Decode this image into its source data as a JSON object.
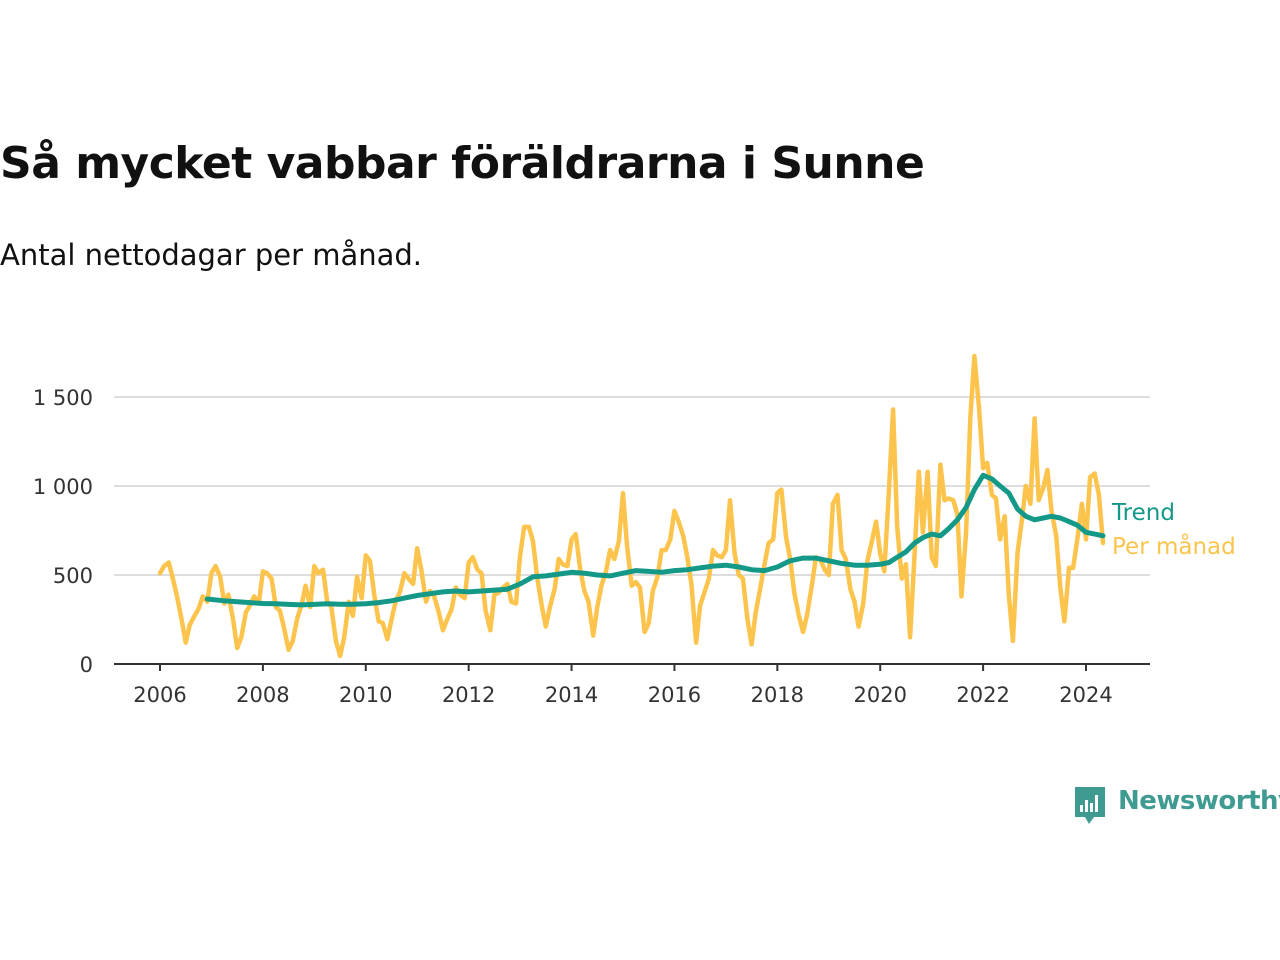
{
  "chart_data": {
    "type": "line",
    "title": "Så mycket vabbar föräldrarna i Sunne",
    "subtitle": "Antal nettodagar per månad.",
    "xlabel": "",
    "ylabel": "",
    "xlim": [
      2005.8,
      2025.2
    ],
    "ylim": [
      0,
      1780
    ],
    "x_ticks": [
      "2006",
      "2008",
      "2010",
      "2012",
      "2014",
      "2016",
      "2018",
      "2020",
      "2022",
      "2024"
    ],
    "y_ticks": [
      {
        "value": 0,
        "label": "0"
      },
      {
        "value": 500,
        "label": "500"
      },
      {
        "value": 1000,
        "label": "1 000"
      },
      {
        "value": 1500,
        "label": "1 500"
      }
    ],
    "grid": true,
    "legend": "right-end labels",
    "series": [
      {
        "name": "Per månad",
        "color": "#fcc44c",
        "x": [
          2006.0,
          2006.08,
          2006.17,
          2006.25,
          2006.33,
          2006.42,
          2006.5,
          2006.58,
          2006.67,
          2006.75,
          2006.83,
          2006.92,
          2007.0,
          2007.08,
          2007.17,
          2007.25,
          2007.33,
          2007.42,
          2007.5,
          2007.58,
          2007.67,
          2007.75,
          2007.83,
          2007.92,
          2008.0,
          2008.08,
          2008.17,
          2008.25,
          2008.33,
          2008.42,
          2008.5,
          2008.58,
          2008.67,
          2008.75,
          2008.83,
          2008.92,
          2009.0,
          2009.08,
          2009.17,
          2009.25,
          2009.33,
          2009.42,
          2009.5,
          2009.58,
          2009.67,
          2009.75,
          2009.83,
          2009.92,
          2010.0,
          2010.08,
          2010.17,
          2010.25,
          2010.33,
          2010.42,
          2010.5,
          2010.58,
          2010.67,
          2010.75,
          2010.83,
          2010.92,
          2011.0,
          2011.08,
          2011.17,
          2011.25,
          2011.33,
          2011.42,
          2011.5,
          2011.58,
          2011.67,
          2011.75,
          2011.83,
          2011.92,
          2012.0,
          2012.08,
          2012.17,
          2012.25,
          2012.33,
          2012.42,
          2012.5,
          2012.58,
          2012.67,
          2012.75,
          2012.83,
          2012.92,
          2013.0,
          2013.08,
          2013.17,
          2013.25,
          2013.33,
          2013.42,
          2013.5,
          2013.58,
          2013.67,
          2013.75,
          2013.83,
          2013.92,
          2014.0,
          2014.08,
          2014.17,
          2014.25,
          2014.33,
          2014.42,
          2014.5,
          2014.58,
          2014.67,
          2014.75,
          2014.83,
          2014.92,
          2015.0,
          2015.08,
          2015.17,
          2015.25,
          2015.33,
          2015.42,
          2015.5,
          2015.58,
          2015.67,
          2015.75,
          2015.83,
          2015.92,
          2016.0,
          2016.08,
          2016.17,
          2016.25,
          2016.33,
          2016.42,
          2016.5,
          2016.58,
          2016.67,
          2016.75,
          2016.83,
          2016.92,
          2017.0,
          2017.08,
          2017.17,
          2017.25,
          2017.33,
          2017.42,
          2017.5,
          2017.58,
          2017.67,
          2017.75,
          2017.83,
          2017.92,
          2018.0,
          2018.08,
          2018.17,
          2018.25,
          2018.33,
          2018.42,
          2018.5,
          2018.58,
          2018.67,
          2018.75,
          2018.83,
          2018.92,
          2019.0,
          2019.08,
          2019.17,
          2019.25,
          2019.33,
          2019.42,
          2019.5,
          2019.58,
          2019.67,
          2019.75,
          2019.83,
          2019.92,
          2020.0,
          2020.08,
          2020.17,
          2020.25,
          2020.33,
          2020.42,
          2020.5,
          2020.58,
          2020.67,
          2020.75,
          2020.83,
          2020.92,
          2021.0,
          2021.08,
          2021.17,
          2021.25,
          2021.33,
          2021.42,
          2021.5,
          2021.58,
          2021.67,
          2021.75,
          2021.83,
          2021.92,
          2022.0,
          2022.08,
          2022.17,
          2022.25,
          2022.33,
          2022.42,
          2022.5,
          2022.58,
          2022.67,
          2022.75,
          2022.83,
          2022.92,
          2023.0,
          2023.08,
          2023.17,
          2023.25,
          2023.33,
          2023.42,
          2023.5,
          2023.58,
          2023.67,
          2023.75,
          2023.83,
          2023.92,
          2024.0,
          2024.08,
          2024.17,
          2024.25,
          2024.33
        ],
        "values": [
          510,
          550,
          570,
          480,
          380,
          250,
          120,
          220,
          270,
          310,
          380,
          350,
          510,
          550,
          490,
          340,
          390,
          250,
          90,
          150,
          290,
          330,
          380,
          340,
          520,
          510,
          480,
          320,
          300,
          190,
          80,
          130,
          260,
          330,
          440,
          320,
          550,
          510,
          530,
          350,
          320,
          130,
          45,
          150,
          350,
          270,
          490,
          370,
          610,
          580,
          380,
          240,
          230,
          140,
          250,
          350,
          410,
          510,
          480,
          450,
          650,
          530,
          350,
          410,
          380,
          290,
          190,
          250,
          310,
          430,
          390,
          370,
          570,
          600,
          530,
          510,
          300,
          190,
          390,
          400,
          430,
          450,
          350,
          340,
          610,
          770,
          770,
          690,
          490,
          330,
          210,
          320,
          420,
          590,
          560,
          550,
          700,
          730,
          530,
          410,
          350,
          160,
          320,
          440,
          520,
          640,
          590,
          690,
          960,
          660,
          440,
          460,
          430,
          180,
          230,
          410,
          490,
          640,
          640,
          700,
          860,
          800,
          720,
          600,
          450,
          120,
          330,
          400,
          480,
          640,
          610,
          600,
          640,
          920,
          620,
          500,
          480,
          250,
          110,
          290,
          430,
          560,
          680,
          700,
          960,
          980,
          710,
          590,
          400,
          270,
          180,
          280,
          440,
          600,
          590,
          530,
          500,
          900,
          950,
          640,
          590,
          420,
          350,
          210,
          340,
          580,
          680,
          800,
          620,
          520,
          980,
          1430,
          770,
          480,
          560,
          150,
          630,
          1080,
          740,
          1080,
          600,
          550,
          1120,
          920,
          930,
          920,
          840,
          380,
          740,
          1380,
          1730,
          1440,
          1100,
          1130,
          950,
          930,
          700,
          830,
          390,
          130,
          630,
          800,
          1000,
          900,
          1380,
          920,
          990,
          1090,
          860,
          720,
          430,
          240,
          540,
          540,
          700,
          900,
          700,
          1050,
          1070,
          950,
          680
        ]
      },
      {
        "name": "Trend",
        "color": "#149888",
        "x": [
          2006.92,
          2007.25,
          2007.5,
          2007.75,
          2008.0,
          2008.25,
          2008.5,
          2008.75,
          2009.0,
          2009.25,
          2009.5,
          2009.75,
          2010.0,
          2010.25,
          2010.5,
          2010.75,
          2011.0,
          2011.25,
          2011.5,
          2011.75,
          2012.0,
          2012.25,
          2012.5,
          2012.75,
          2013.0,
          2013.25,
          2013.5,
          2013.75,
          2014.0,
          2014.25,
          2014.5,
          2014.75,
          2015.0,
          2015.25,
          2015.5,
          2015.75,
          2016.0,
          2016.25,
          2016.5,
          2016.75,
          2017.0,
          2017.25,
          2017.5,
          2017.75,
          2018.0,
          2018.25,
          2018.5,
          2018.75,
          2019.0,
          2019.25,
          2019.5,
          2019.75,
          2020.0,
          2020.17,
          2020.33,
          2020.5,
          2020.67,
          2020.83,
          2021.0,
          2021.17,
          2021.33,
          2021.5,
          2021.67,
          2021.83,
          2022.0,
          2022.17,
          2022.33,
          2022.5,
          2022.67,
          2022.83,
          2023.0,
          2023.17,
          2023.33,
          2023.5,
          2023.67,
          2023.83,
          2024.0,
          2024.17,
          2024.33
        ],
        "values": [
          365,
          355,
          350,
          345,
          340,
          338,
          335,
          332,
          335,
          338,
          336,
          336,
          338,
          345,
          355,
          370,
          385,
          395,
          405,
          410,
          405,
          410,
          415,
          420,
          450,
          490,
          495,
          505,
          515,
          510,
          500,
          495,
          510,
          525,
          520,
          515,
          525,
          530,
          540,
          550,
          555,
          545,
          530,
          525,
          545,
          580,
          595,
          595,
          580,
          565,
          555,
          555,
          560,
          570,
          600,
          630,
          680,
          710,
          730,
          720,
          760,
          810,
          880,
          980,
          1060,
          1040,
          1000,
          960,
          870,
          830,
          810,
          820,
          830,
          820,
          800,
          780,
          740,
          730,
          720
        ]
      }
    ]
  },
  "brand": {
    "name": "Newsworthy",
    "color": "#3f9b92",
    "icon": "newsworthy-bar-chart-icon"
  }
}
